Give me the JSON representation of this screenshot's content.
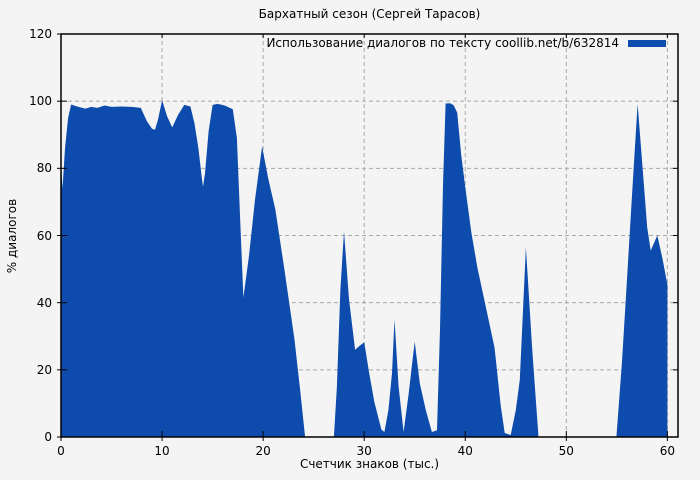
{
  "page": {
    "background_color": "#f4f4f4"
  },
  "chart_data": {
    "type": "area",
    "title": "Бархатный сезон (Сергей Тарасов)",
    "xlabel": "Счетчик знаков (тыс.)",
    "ylabel": "% диалогов",
    "legend": {
      "label": "Использование диалогов по тексту coollib.net/b/632814",
      "position": "top-right",
      "swatch_color": "#0d4bad"
    },
    "xlim": [
      0,
      61.05
    ],
    "ylim": [
      0,
      120
    ],
    "xticks": [
      0,
      10,
      20,
      30,
      40,
      50,
      60
    ],
    "yticks": [
      0,
      20,
      40,
      60,
      80,
      100,
      120
    ],
    "grid": {
      "show": true,
      "color": "#a8a8a8",
      "dash": "4 3"
    },
    "border_color": "#000000",
    "fill_color": "#0d4bad",
    "series": [
      {
        "name": "Использование диалогов по тексту coollib.net/b/632814",
        "points": [
          [
            0,
            82
          ],
          [
            0.15,
            74
          ],
          [
            0.4,
            86
          ],
          [
            0.7,
            95
          ],
          [
            1,
            99
          ],
          [
            1.6,
            98.4
          ],
          [
            2.4,
            97.8
          ],
          [
            3,
            98.3
          ],
          [
            3.6,
            98
          ],
          [
            4.3,
            98.7
          ],
          [
            5,
            98.3
          ],
          [
            6,
            98.4
          ],
          [
            7,
            98.3
          ],
          [
            7.9,
            98
          ],
          [
            8.5,
            94
          ],
          [
            9,
            91.8
          ],
          [
            9.3,
            91.5
          ],
          [
            9.6,
            94.5
          ],
          [
            10,
            100.3
          ],
          [
            10.5,
            95.5
          ],
          [
            11,
            92.2
          ],
          [
            11.6,
            96
          ],
          [
            12.2,
            98.9
          ],
          [
            12.8,
            98.4
          ],
          [
            13.2,
            93.5
          ],
          [
            13.6,
            86
          ],
          [
            13.9,
            78
          ],
          [
            14.05,
            74.5
          ],
          [
            14.25,
            78.5
          ],
          [
            14.6,
            91
          ],
          [
            15,
            98.9
          ],
          [
            15.5,
            99.2
          ],
          [
            16.2,
            98.7
          ],
          [
            17,
            97.6
          ],
          [
            17.4,
            89
          ],
          [
            17.75,
            63
          ],
          [
            18.05,
            41.5
          ],
          [
            18.6,
            54
          ],
          [
            19.2,
            70.7
          ],
          [
            19.9,
            86.5
          ],
          [
            20.5,
            77
          ],
          [
            21.2,
            67.8
          ],
          [
            22.1,
            49.9
          ],
          [
            23.1,
            29
          ],
          [
            23.7,
            13
          ],
          [
            24.15,
            0
          ],
          [
            25,
            0
          ],
          [
            26,
            0
          ],
          [
            27,
            0
          ],
          [
            27.3,
            15
          ],
          [
            27.65,
            44
          ],
          [
            28,
            61.2
          ],
          [
            28.5,
            41
          ],
          [
            29.1,
            26
          ],
          [
            29.5,
            27
          ],
          [
            30,
            28.2
          ],
          [
            30.5,
            19
          ],
          [
            31,
            10.5
          ],
          [
            31.7,
            2.2
          ],
          [
            32,
            1.5
          ],
          [
            32.4,
            8
          ],
          [
            32.75,
            19
          ],
          [
            33,
            35
          ],
          [
            33.4,
            15
          ],
          [
            33.9,
            1.5
          ],
          [
            34.4,
            13
          ],
          [
            35,
            28.4
          ],
          [
            35.5,
            16
          ],
          [
            36.1,
            8
          ],
          [
            36.7,
            1.5
          ],
          [
            37.2,
            2
          ],
          [
            37.5,
            32
          ],
          [
            37.8,
            75
          ],
          [
            38.05,
            99.3
          ],
          [
            38.5,
            99.4
          ],
          [
            38.85,
            98.8
          ],
          [
            39.2,
            96.6
          ],
          [
            39.6,
            84
          ],
          [
            40,
            74.3
          ],
          [
            40.6,
            61
          ],
          [
            41.2,
            50.4
          ],
          [
            42.2,
            36.4
          ],
          [
            42.9,
            26.5
          ],
          [
            43.5,
            9.6
          ],
          [
            43.9,
            1.2
          ],
          [
            44.5,
            0.6
          ],
          [
            45,
            8
          ],
          [
            45.4,
            17
          ],
          [
            46,
            56.5
          ],
          [
            46.6,
            27
          ],
          [
            47.25,
            0
          ],
          [
            48,
            0
          ],
          [
            50,
            0
          ],
          [
            52,
            0
          ],
          [
            54,
            0
          ],
          [
            54.95,
            0
          ],
          [
            55.5,
            22
          ],
          [
            56,
            47
          ],
          [
            56.5,
            72
          ],
          [
            57.05,
            99.2
          ],
          [
            57.5,
            82
          ],
          [
            58,
            62.4
          ],
          [
            58.35,
            55.5
          ],
          [
            59,
            60
          ],
          [
            59.5,
            53.4
          ],
          [
            60,
            45.4
          ]
        ]
      }
    ]
  }
}
